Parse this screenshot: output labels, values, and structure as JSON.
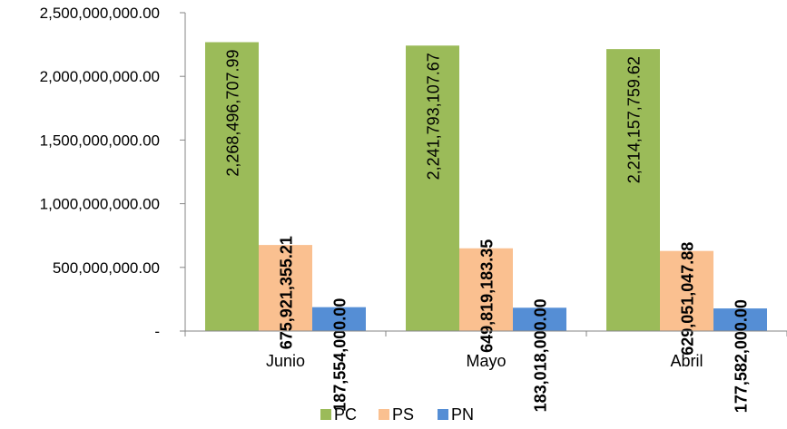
{
  "chart_data": {
    "type": "bar",
    "title": "",
    "xlabel": "",
    "ylabel": "",
    "categories": [
      "Junio",
      "Mayo",
      "Abril"
    ],
    "series": [
      {
        "name": "PC",
        "color": "#9BBB59",
        "values": [
          2268496707.99,
          2241793107.67,
          2214157759.62
        ],
        "labels": [
          "2,268,496,707.99",
          "2,241,793,107.67",
          "2,214,157,759.62"
        ],
        "label_bold": false,
        "label_inside": true
      },
      {
        "name": "PS",
        "color": "#FAC090",
        "values": [
          675921355.21,
          649819183.35,
          629051047.88
        ],
        "labels": [
          "675,921,355.21",
          "649,819,183.35",
          "629,051,047.88"
        ],
        "label_bold": true,
        "label_inside": false
      },
      {
        "name": "PN",
        "color": "#558ED5",
        "values": [
          187554000.0,
          183018000.0,
          177582000.0
        ],
        "labels": [
          "187,554,000.00",
          "183,018,000.00",
          "177,582,000.00"
        ],
        "label_bold": true,
        "label_inside": false
      }
    ],
    "ylim": [
      0,
      2500000000
    ],
    "yticks": [
      0,
      500000000,
      1000000000,
      1500000000,
      2000000000,
      2500000000
    ],
    "ytick_labels": [
      "-",
      "500,000,000.00",
      "1,000,000,000.00",
      "1,500,000,000.00",
      "2,000,000,000.00",
      "2,500,000,000.00"
    ],
    "grid": false,
    "legend": "bottom"
  }
}
